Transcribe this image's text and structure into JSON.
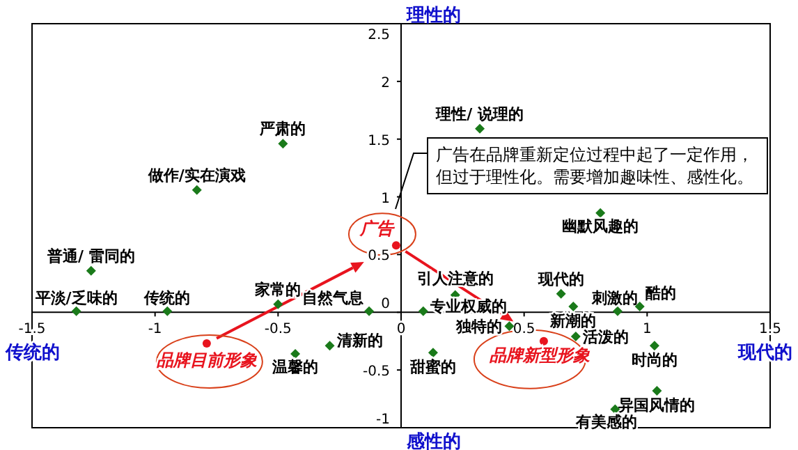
{
  "chart_data": {
    "type": "scatter",
    "xlim": [
      -1.5,
      1.5
    ],
    "ylim": [
      -1,
      2.5
    ],
    "xticks": [
      -1.5,
      -1,
      -0.5,
      0,
      0.5,
      1,
      1.5
    ],
    "yticks": [
      -1,
      -0.5,
      0,
      0.5,
      1,
      1.5,
      2,
      2.5
    ],
    "grid": false,
    "series": [
      {
        "color": "#1a7a1a",
        "marker": "diamond",
        "x": [
          -0.48,
          -0.83,
          -1.26,
          -1.32,
          -0.95,
          -0.5,
          -0.13,
          -0.43,
          -0.29,
          0.32,
          0.81,
          0.22,
          0.09,
          0.44,
          0.13,
          0.65,
          0.7,
          0.88,
          0.97,
          0.71,
          1.03,
          1.04,
          0.87
        ],
        "values": [
          1.46,
          1.06,
          0.36,
          0.01,
          0.01,
          0.07,
          0.01,
          -0.36,
          -0.29,
          1.59,
          0.86,
          0.15,
          0.01,
          -0.12,
          -0.35,
          0.16,
          0.05,
          0.01,
          0.05,
          -0.21,
          -0.29,
          -0.68,
          -0.84
        ],
        "value_labels": [
          "严肃的",
          "做作/实在演戏",
          "普通/ 雷同的",
          "平淡/乏味的",
          "传统的",
          "家常的",
          "自然气息",
          "温馨的",
          "清新的",
          "理性/ 说理的",
          "幽默风趣的",
          "引人注意的",
          "专业权威的",
          "独特的",
          "甜蜜的",
          "现代的",
          "新潮的",
          "刺激的",
          "酷的",
          "活泼的",
          "时尚的",
          "异国风情的",
          "有美感的"
        ]
      },
      {
        "color": "#e8141e",
        "marker": "circle",
        "x": [
          -0.02,
          -0.79,
          0.58
        ],
        "values": [
          0.58,
          -0.27,
          -0.25
        ],
        "value_labels": [
          "广告",
          "品牌目前形象",
          "品牌新型形象"
        ]
      }
    ],
    "annotations": [
      "理性的",
      "感性的",
      "传统的",
      "现代的",
      "广告在品牌重新定位过程中起了一定作用，但过于理性化。需要增加趣味性、感性化。"
    ]
  }
}
